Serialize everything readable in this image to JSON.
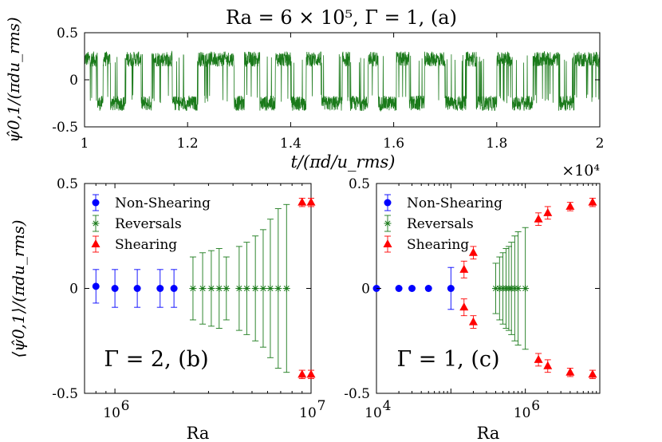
{
  "figure": {
    "title": "Ra = 6 × 10⁵, Γ = 1, (a)",
    "multiplier": "×10⁴"
  },
  "legend_entries": [
    "Non-Shearing",
    "Reversals",
    "Shearing"
  ],
  "colors": {
    "timeseries": "#1a7a1a",
    "non_shearing": "#0000ff",
    "reversals": "#1a7a1a",
    "shearing": "#ff0000",
    "axis": "#000000"
  },
  "chart_data": [
    {
      "type": "line",
      "panel": "a",
      "title": "Ra = 6 × 10⁵, Γ = 1, (a)",
      "xlabel": "t/(πd/u_rms)",
      "ylabel": "ψ̂0,1/(πdu_rms)",
      "xlim": [
        1,
        2
      ],
      "ylim": [
        -0.5,
        0.5
      ],
      "x_multiplier": "×10⁴",
      "x_ticks": [
        "1",
        "1.2",
        "1.4",
        "1.6",
        "1.8",
        "2"
      ],
      "y_ticks": [
        "-0.5",
        "0",
        "0.5"
      ],
      "series": [
        {
          "name": "ψ̂0,1 time series",
          "description_of_signal": "noisy telegraph signal switching between about +0.22 and -0.25",
          "upper_state": 0.22,
          "lower_state": -0.25,
          "noise_amplitude": 0.08,
          "segments": [
            {
              "t0": 1.0,
              "t1": 1.025,
              "state": 0.22
            },
            {
              "t0": 1.025,
              "t1": 1.036,
              "state": -0.25
            },
            {
              "t0": 1.036,
              "t1": 1.05,
              "state": 0.22
            },
            {
              "t0": 1.05,
              "t1": 1.08,
              "state": -0.25
            },
            {
              "t0": 1.08,
              "t1": 1.11,
              "state": 0.22
            },
            {
              "t0": 1.11,
              "t1": 1.13,
              "state": -0.25
            },
            {
              "t0": 1.13,
              "t1": 1.17,
              "state": 0.22
            },
            {
              "t0": 1.17,
              "t1": 1.22,
              "state": -0.25
            },
            {
              "t0": 1.22,
              "t1": 1.29,
              "state": 0.22
            },
            {
              "t0": 1.29,
              "t1": 1.31,
              "state": -0.25
            },
            {
              "t0": 1.31,
              "t1": 1.34,
              "state": 0.22
            },
            {
              "t0": 1.34,
              "t1": 1.37,
              "state": -0.25
            },
            {
              "t0": 1.37,
              "t1": 1.4,
              "state": 0.22
            },
            {
              "t0": 1.4,
              "t1": 1.43,
              "state": -0.25
            },
            {
              "t0": 1.43,
              "t1": 1.46,
              "state": 0.22
            },
            {
              "t0": 1.46,
              "t1": 1.5,
              "state": -0.25
            },
            {
              "t0": 1.5,
              "t1": 1.515,
              "state": 0.22
            },
            {
              "t0": 1.515,
              "t1": 1.55,
              "state": -0.25
            },
            {
              "t0": 1.55,
              "t1": 1.57,
              "state": 0.22
            },
            {
              "t0": 1.57,
              "t1": 1.605,
              "state": -0.25
            },
            {
              "t0": 1.605,
              "t1": 1.63,
              "state": 0.22
            },
            {
              "t0": 1.63,
              "t1": 1.66,
              "state": -0.25
            },
            {
              "t0": 1.66,
              "t1": 1.7,
              "state": 0.22
            },
            {
              "t0": 1.7,
              "t1": 1.74,
              "state": -0.25
            },
            {
              "t0": 1.74,
              "t1": 1.76,
              "state": 0.22
            },
            {
              "t0": 1.76,
              "t1": 1.8,
              "state": -0.25
            },
            {
              "t0": 1.8,
              "t1": 1.83,
              "state": 0.22
            },
            {
              "t0": 1.83,
              "t1": 1.87,
              "state": -0.25
            },
            {
              "t0": 1.87,
              "t1": 1.92,
              "state": 0.22
            },
            {
              "t0": 1.92,
              "t1": 1.95,
              "state": -0.25
            },
            {
              "t0": 1.95,
              "t1": 2.0,
              "state": 0.22
            }
          ]
        }
      ]
    },
    {
      "type": "scatter",
      "panel": "b",
      "annotation": "Γ = 2, (b)",
      "xlabel": "Ra",
      "ylabel": "⟨ψ̂0,1⟩/(πdu_rms)",
      "xscale": "log",
      "xlim": [
        700000,
        10000000
      ],
      "ylim": [
        -0.5,
        0.5
      ],
      "x_ticks": [
        {
          "value": 1000000,
          "base": "10",
          "exp": "6"
        },
        {
          "value": 10000000,
          "base": "10",
          "exp": "7"
        }
      ],
      "y_ticks": [
        "-0.5",
        "0",
        "0.5"
      ],
      "legend": {
        "position": "top-left",
        "entries": [
          "Non-Shearing",
          "Reversals",
          "Shearing"
        ]
      },
      "series": [
        {
          "name": "Non-Shearing",
          "marker": "circle",
          "x": [
            800000,
            1000000,
            1300000,
            1700000,
            2000000
          ],
          "y": [
            0.01,
            0.0,
            0.0,
            0.0,
            0.0
          ],
          "err": [
            0.08,
            0.09,
            0.09,
            0.09,
            0.09
          ]
        },
        {
          "name": "Reversals",
          "marker": "asterisk",
          "x": [
            2500000,
            2800000,
            3100000,
            3400000,
            3700000,
            4300000,
            4700000,
            5200000,
            5700000,
            6200000,
            6800000,
            7500000
          ],
          "y": [
            0.0,
            0.0,
            0.0,
            0.0,
            0.0,
            0.0,
            0.0,
            0.0,
            0.0,
            0.0,
            0.0,
            0.0
          ],
          "err": [
            0.15,
            0.17,
            0.18,
            0.19,
            0.15,
            0.2,
            0.22,
            0.25,
            0.28,
            0.33,
            0.38,
            0.4
          ]
        },
        {
          "name": "Shearing",
          "marker": "triangle",
          "x": [
            9000000,
            10000000,
            9000000,
            10000000
          ],
          "y": [
            0.41,
            0.41,
            -0.41,
            -0.41
          ],
          "err": [
            0.02,
            0.02,
            0.02,
            0.02
          ]
        }
      ]
    },
    {
      "type": "scatter",
      "panel": "c",
      "annotation": "Γ = 1, (c)",
      "xlabel": "Ra",
      "ylabel": "",
      "xscale": "log",
      "xlim": [
        10000,
        10000000
      ],
      "ylim": [
        -0.5,
        0.5
      ],
      "x_ticks": [
        {
          "value": 10000,
          "base": "10",
          "exp": "4"
        },
        {
          "value": 1000000,
          "base": "10",
          "exp": "6"
        }
      ],
      "y_ticks": [
        "-0.5",
        "0",
        "0.5"
      ],
      "legend": {
        "position": "top-left",
        "entries": [
          "Non-Shearing",
          "Reversals",
          "Shearing"
        ]
      },
      "series": [
        {
          "name": "Non-Shearing",
          "marker": "circle",
          "x": [
            10000,
            20000,
            30000,
            50000,
            100000
          ],
          "y": [
            0.0,
            0.0,
            0.0,
            0.0,
            0.0
          ],
          "err": [
            0,
            0,
            0,
            0,
            0.1
          ]
        },
        {
          "name": "Reversals",
          "marker": "asterisk",
          "x": [
            400000,
            450000,
            500000,
            550000,
            600000,
            650000,
            720000,
            800000,
            1000000
          ],
          "y": [
            0.0,
            0.0,
            0.0,
            0.0,
            0.0,
            0.0,
            0.0,
            0.0,
            0.0
          ],
          "err": [
            0.12,
            0.15,
            0.17,
            0.19,
            0.2,
            0.22,
            0.25,
            0.27,
            0.29
          ]
        },
        {
          "name": "Shearing",
          "marker": "triangle",
          "x": [
            150000,
            200000,
            1500000,
            2000000,
            4000000,
            8000000,
            150000,
            200000,
            1500000,
            2000000,
            4000000,
            8000000
          ],
          "y": [
            0.09,
            0.17,
            0.33,
            0.36,
            0.39,
            0.41,
            -0.09,
            -0.16,
            -0.34,
            -0.37,
            -0.4,
            -0.41
          ],
          "err": [
            0.04,
            0.03,
            0.03,
            0.03,
            0.02,
            0.02,
            0.04,
            0.03,
            0.03,
            0.03,
            0.02,
            0.02
          ]
        }
      ]
    }
  ]
}
